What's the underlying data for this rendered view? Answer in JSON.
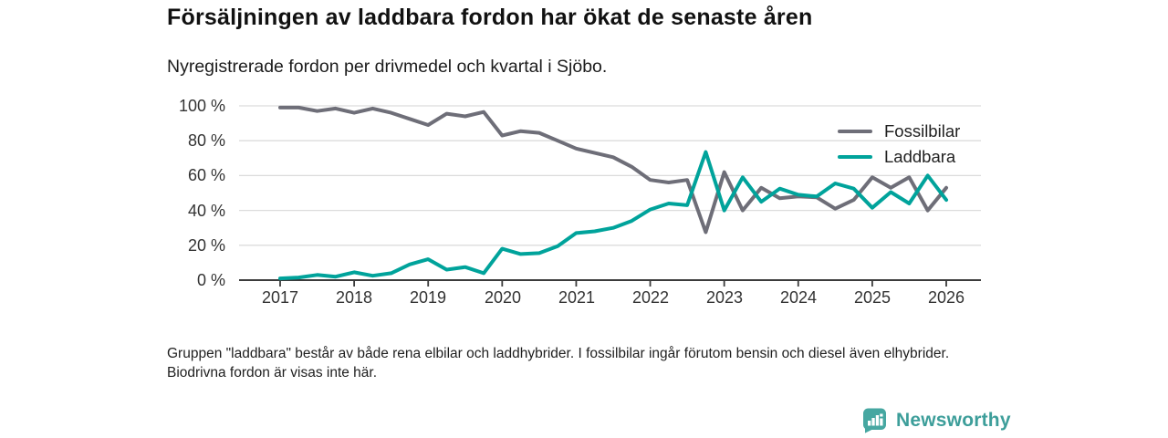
{
  "header": {
    "title": "Försäljningen av laddbara fordon har ökat de senaste åren",
    "subtitle": "Nyregistrerade fordon per drivmedel och kvartal i Sjöbo."
  },
  "footnote": "Gruppen \"laddbara\" består av både rena elbilar och laddhybrider. I fossilbilar ingår förutom bensin och diesel även elhybrider. Biodrivna fordon är visas inte här.",
  "logo": {
    "text": "Newsworthy",
    "color": "#3d9e9a",
    "icon": "bar-chart-badge-icon"
  },
  "chart_data": {
    "type": "line",
    "title": "Försäljningen av laddbara fordon har ökat de senaste åren",
    "subtitle": "Nyregistrerade fordon per drivmedel och kvartal i Sjöbo.",
    "x_unit": "quarter",
    "x_start": "2017 Q1",
    "x_end": "2026 Q1",
    "points_per_year": 4,
    "x_tick_labels": [
      "2017",
      "2018",
      "2019",
      "2020",
      "2021",
      "2022",
      "2023",
      "2024",
      "2025",
      "2026"
    ],
    "y_tick_labels": [
      "100 %",
      "80 %",
      "60 %",
      "40 %",
      "20 %",
      "0 %"
    ],
    "ylim": [
      0,
      100
    ],
    "grid": "horizontal",
    "grid_color": "#dcdcdc",
    "axis_color": "#3b3b3b",
    "legend_position": "top-right",
    "series": [
      {
        "name": "Fossilbilar",
        "color": "#6e6e78",
        "values": [
          99,
          99,
          97,
          98.5,
          96,
          98.5,
          96,
          92.5,
          89,
          95.5,
          94,
          96.5,
          83,
          85.5,
          84.5,
          80,
          75.5,
          73,
          70.5,
          65,
          57.5,
          56,
          57.5,
          27.5,
          62,
          40,
          53,
          47,
          48,
          47.5,
          41,
          46,
          59,
          53,
          59,
          40,
          53
        ]
      },
      {
        "name": "Laddbara",
        "color": "#00a39b",
        "values": [
          1,
          1.5,
          3,
          2,
          4.5,
          2.5,
          4,
          9,
          12,
          6,
          7.5,
          4,
          18,
          15,
          15.5,
          19.5,
          27,
          28,
          30,
          34,
          40.5,
          44,
          43,
          73.5,
          40,
          59,
          45,
          52.5,
          49,
          48,
          55.5,
          52.5,
          41.5,
          50.5,
          44,
          60,
          46
        ]
      }
    ]
  }
}
